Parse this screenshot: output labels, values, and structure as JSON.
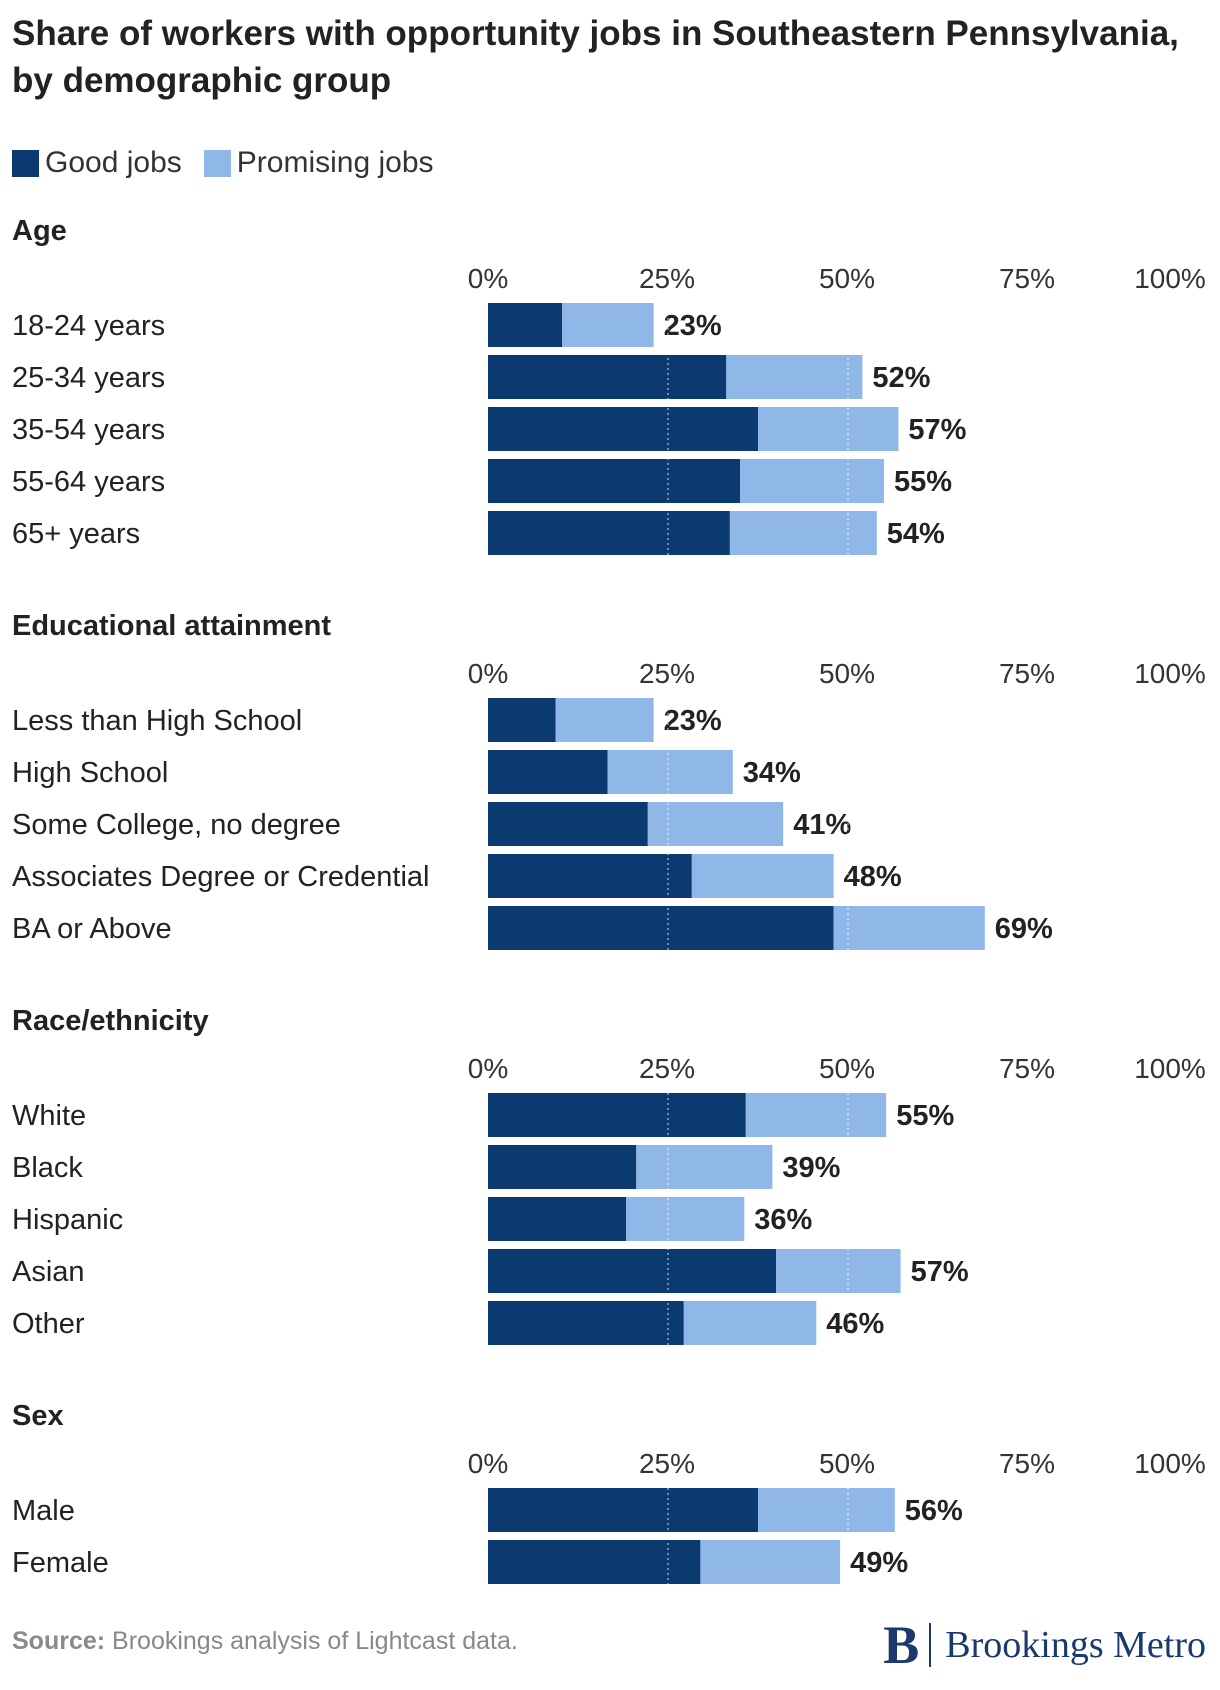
{
  "title": "Share of workers with opportunity jobs in Southeastern Pennsylvania, by demographic group",
  "legend": {
    "good_label": "Good jobs",
    "promising_label": "Promising jobs"
  },
  "colors": {
    "good": "#0b3a70",
    "promising": "#8fb8e8",
    "grid": "#dddddd"
  },
  "footer": {
    "source_label": "Source:",
    "source_text": " Brookings analysis of Lightcast data.",
    "logo_mark": "B",
    "logo_name": "Brookings Metro"
  },
  "chart_data": {
    "type": "bar",
    "orientation": "horizontal",
    "stacked": true,
    "xlim": [
      0,
      100
    ],
    "ticks": [
      "0%",
      "25%",
      "50%",
      "75%",
      "100%"
    ],
    "tick_values": [
      0,
      25,
      50,
      75,
      100
    ],
    "series_names": [
      "Good jobs",
      "Promising jobs"
    ],
    "groups": [
      {
        "name": "Age",
        "categories": [
          "18-24 years",
          "25-34 years",
          "35-54 years",
          "55-64 years",
          "65+ years"
        ],
        "good": [
          10.3,
          33.1,
          37.5,
          35.0,
          33.6
        ],
        "promising": [
          12.7,
          18.9,
          19.5,
          20.0,
          20.4
        ],
        "totals": [
          "23%",
          "52%",
          "57%",
          "55%",
          "54%"
        ]
      },
      {
        "name": "Educational attainment",
        "categories": [
          "Less than High School",
          "High School",
          "Some College, no degree",
          "Associates Degree or Credential",
          "BA or Above"
        ],
        "good": [
          9.4,
          16.6,
          22.2,
          28.3,
          48.0
        ],
        "promising": [
          13.6,
          17.4,
          18.8,
          19.7,
          21.0
        ],
        "totals": [
          "23%",
          "34%",
          "41%",
          "48%",
          "69%"
        ]
      },
      {
        "name": "Race/ethnicity",
        "categories": [
          "White",
          "Black",
          "Hispanic",
          "Asian",
          "Other"
        ],
        "good": [
          35.8,
          20.6,
          19.2,
          40.0,
          27.2
        ],
        "promising": [
          19.5,
          18.9,
          16.4,
          17.3,
          18.4
        ],
        "totals": [
          "55%",
          "39%",
          "36%",
          "57%",
          "46%"
        ]
      },
      {
        "name": "Sex",
        "categories": [
          "Male",
          "Female"
        ],
        "good": [
          37.5,
          29.5
        ],
        "promising": [
          19.0,
          19.4
        ],
        "totals": [
          "56%",
          "49%"
        ]
      }
    ]
  }
}
